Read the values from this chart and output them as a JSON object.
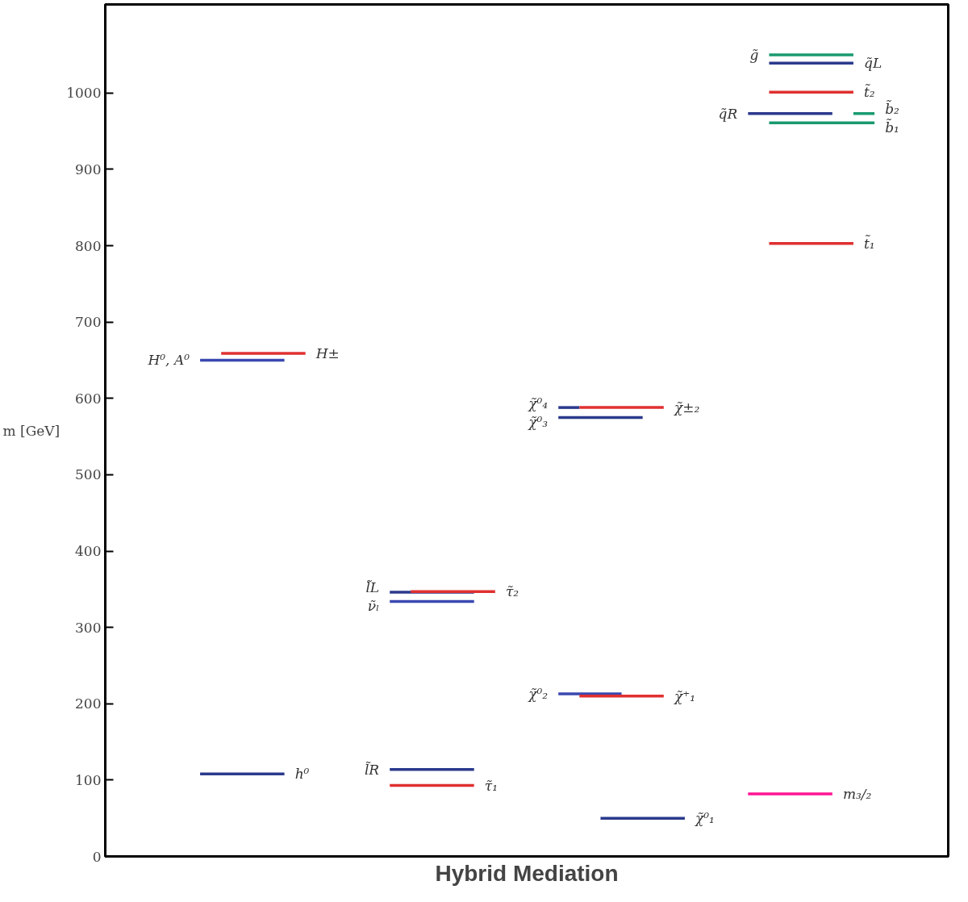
{
  "chart_data": {
    "type": "line",
    "xlabel": "Hybrid Mediation",
    "ylabel": "m [GeV]",
    "categories": [
      null,
      null,
      null,
      null,
      null,
      null,
      null,
      null,
      null,
      null,
      null,
      null,
      null,
      null,
      null,
      null,
      null,
      null,
      null,
      null,
      null,
      null,
      null,
      null,
      null,
      null,
      null,
      null,
      null,
      null,
      null,
      null,
      null,
      null,
      null,
      null,
      null,
      null,
      null,
      null
    ],
    "ylim": [
      0,
      1116
    ],
    "yticks": [
      0,
      100,
      200,
      300,
      400,
      500,
      600,
      700,
      800,
      900,
      1000
    ],
    "tick_labels": "y",
    "grid": false,
    "legend": false,
    "marker": "none",
    "line_style": "solid",
    "series": [
      {
        "name": "h⁰",
        "color": "#2b3a8c",
        "values": [
          null,
          null,
          null,
          null,
          108,
          108,
          108,
          108,
          108,
          null,
          null,
          null,
          null,
          null,
          null,
          null,
          null,
          null,
          null,
          null,
          null,
          null,
          null,
          null,
          null,
          null,
          null,
          null,
          null,
          null,
          null,
          null,
          null,
          null,
          null,
          null,
          null,
          null,
          null,
          null
        ]
      },
      {
        "name": "H⁰, A⁰",
        "color": "#3a48b0",
        "values": [
          null,
          null,
          null,
          null,
          650,
          650,
          650,
          650,
          650,
          null,
          null,
          null,
          null,
          null,
          null,
          null,
          null,
          null,
          null,
          null,
          null,
          null,
          null,
          null,
          null,
          null,
          null,
          null,
          null,
          null,
          null,
          null,
          null,
          null,
          null,
          null,
          null,
          null,
          null,
          null
        ]
      },
      {
        "name": "H±",
        "color": "#e03030",
        "values": [
          null,
          null,
          null,
          null,
          null,
          659,
          659,
          659,
          659,
          659,
          null,
          null,
          null,
          null,
          null,
          null,
          null,
          null,
          null,
          null,
          null,
          null,
          null,
          null,
          null,
          null,
          null,
          null,
          null,
          null,
          null,
          null,
          null,
          null,
          null,
          null,
          null,
          null,
          null,
          null
        ]
      },
      {
        "name": "l̃L",
        "color": "#2b3a8c",
        "values": [
          null,
          null,
          null,
          null,
          null,
          null,
          null,
          null,
          null,
          null,
          null,
          null,
          null,
          346,
          346,
          346,
          346,
          346,
          null,
          null,
          null,
          null,
          null,
          null,
          null,
          null,
          null,
          null,
          null,
          null,
          null,
          null,
          null,
          null,
          null,
          null,
          null,
          null,
          null,
          null
        ]
      },
      {
        "name": "τ̃₂",
        "color": "#e03030",
        "values": [
          null,
          null,
          null,
          null,
          null,
          null,
          null,
          null,
          null,
          null,
          null,
          null,
          null,
          null,
          347,
          347,
          347,
          347,
          347,
          null,
          null,
          null,
          null,
          null,
          null,
          null,
          null,
          null,
          null,
          null,
          null,
          null,
          null,
          null,
          null,
          null,
          null,
          null,
          null,
          null
        ]
      },
      {
        "name": "ν̃ₗ",
        "color": "#3a48b0",
        "values": [
          null,
          null,
          null,
          null,
          null,
          null,
          null,
          null,
          null,
          null,
          null,
          null,
          null,
          334,
          334,
          334,
          334,
          334,
          null,
          null,
          null,
          null,
          null,
          null,
          null,
          null,
          null,
          null,
          null,
          null,
          null,
          null,
          null,
          null,
          null,
          null,
          null,
          null,
          null,
          null
        ]
      },
      {
        "name": "l̃R",
        "color": "#2b3a8c",
        "values": [
          null,
          null,
          null,
          null,
          null,
          null,
          null,
          null,
          null,
          null,
          null,
          null,
          null,
          114,
          114,
          114,
          114,
          114,
          null,
          null,
          null,
          null,
          null,
          null,
          null,
          null,
          null,
          null,
          null,
          null,
          null,
          null,
          null,
          null,
          null,
          null,
          null,
          null,
          null,
          null
        ]
      },
      {
        "name": "τ̃₁",
        "color": "#e03030",
        "values": [
          null,
          null,
          null,
          null,
          null,
          null,
          null,
          null,
          null,
          null,
          null,
          null,
          null,
          93,
          93,
          93,
          93,
          93,
          null,
          null,
          null,
          null,
          null,
          null,
          null,
          null,
          null,
          null,
          null,
          null,
          null,
          null,
          null,
          null,
          null,
          null,
          null,
          null,
          null,
          null
        ]
      },
      {
        "name": "χ̃⁰₄",
        "color": "#2b3a8c",
        "values": [
          null,
          null,
          null,
          null,
          null,
          null,
          null,
          null,
          null,
          null,
          null,
          null,
          null,
          null,
          null,
          null,
          null,
          null,
          null,
          null,
          null,
          588,
          588,
          null,
          null,
          null,
          null,
          null,
          null,
          null,
          null,
          null,
          null,
          null,
          null,
          null,
          null,
          null,
          null,
          null
        ]
      },
      {
        "name": "χ̃±₂",
        "color": "#e03030",
        "values": [
          null,
          null,
          null,
          null,
          null,
          null,
          null,
          null,
          null,
          null,
          null,
          null,
          null,
          null,
          null,
          null,
          null,
          null,
          null,
          null,
          null,
          null,
          588,
          588,
          588,
          588,
          588,
          null,
          null,
          null,
          null,
          null,
          null,
          null,
          null,
          null,
          null,
          null,
          null,
          null
        ]
      },
      {
        "name": "χ̃⁰₃",
        "color": "#2b3a8c",
        "values": [
          null,
          null,
          null,
          null,
          null,
          null,
          null,
          null,
          null,
          null,
          null,
          null,
          null,
          null,
          null,
          null,
          null,
          null,
          null,
          null,
          null,
          575,
          575,
          575,
          575,
          575,
          null,
          null,
          null,
          null,
          null,
          null,
          null,
          null,
          null,
          null,
          null,
          null,
          null,
          null
        ]
      },
      {
        "name": "χ̃⁰₂",
        "color": "#3a48b0",
        "values": [
          null,
          null,
          null,
          null,
          null,
          null,
          null,
          null,
          null,
          null,
          null,
          null,
          null,
          null,
          null,
          null,
          null,
          null,
          null,
          null,
          null,
          213,
          213,
          213,
          213,
          null,
          null,
          null,
          null,
          null,
          null,
          null,
          null,
          null,
          null,
          null,
          null,
          null,
          null,
          null
        ]
      },
      {
        "name": "χ̃⁺₁",
        "color": "#e03030",
        "values": [
          null,
          null,
          null,
          null,
          null,
          null,
          null,
          null,
          null,
          null,
          null,
          null,
          null,
          null,
          null,
          null,
          null,
          null,
          null,
          null,
          null,
          null,
          210,
          210,
          210,
          210,
          210,
          null,
          null,
          null,
          null,
          null,
          null,
          null,
          null,
          null,
          null,
          null,
          null,
          null
        ]
      },
      {
        "name": "χ̃⁰₁",
        "color": "#2b3a8c",
        "values": [
          null,
          null,
          null,
          null,
          null,
          null,
          null,
          null,
          null,
          null,
          null,
          null,
          null,
          null,
          null,
          null,
          null,
          null,
          null,
          null,
          null,
          null,
          null,
          50,
          50,
          50,
          50,
          50,
          null,
          null,
          null,
          null,
          null,
          null,
          null,
          null,
          null,
          null,
          null,
          null
        ]
      },
      {
        "name": "g̃",
        "color": "#1a9a70",
        "values": [
          null,
          null,
          null,
          null,
          null,
          null,
          null,
          null,
          null,
          null,
          null,
          null,
          null,
          null,
          null,
          null,
          null,
          null,
          null,
          null,
          null,
          null,
          null,
          null,
          null,
          null,
          null,
          null,
          null,
          null,
          null,
          1050,
          1050,
          1050,
          1050,
          1050,
          null,
          null,
          null,
          null
        ]
      },
      {
        "name": "q̃L",
        "color": "#2b3a8c",
        "values": [
          null,
          null,
          null,
          null,
          null,
          null,
          null,
          null,
          null,
          null,
          null,
          null,
          null,
          null,
          null,
          null,
          null,
          null,
          null,
          null,
          null,
          null,
          null,
          null,
          null,
          null,
          null,
          null,
          null,
          null,
          null,
          1039,
          1039,
          1039,
          1039,
          1039,
          null,
          null,
          null,
          null
        ]
      },
      {
        "name": "t̃₂",
        "color": "#e03030",
        "values": [
          null,
          null,
          null,
          null,
          null,
          null,
          null,
          null,
          null,
          null,
          null,
          null,
          null,
          null,
          null,
          null,
          null,
          null,
          null,
          null,
          null,
          null,
          null,
          null,
          null,
          null,
          null,
          null,
          null,
          null,
          null,
          1001,
          1001,
          1001,
          1001,
          1001,
          null,
          null,
          null,
          null
        ]
      },
      {
        "name": "q̃R",
        "color": "#2b3a8c",
        "values": [
          null,
          null,
          null,
          null,
          null,
          null,
          null,
          null,
          null,
          null,
          null,
          null,
          null,
          null,
          null,
          null,
          null,
          null,
          null,
          null,
          null,
          null,
          null,
          null,
          null,
          null,
          null,
          null,
          null,
          null,
          973,
          973,
          973,
          973,
          973,
          null,
          null,
          null,
          null,
          null
        ]
      },
      {
        "name": "b̃₂",
        "color": "#1a9a70",
        "values": [
          null,
          null,
          null,
          null,
          null,
          null,
          null,
          null,
          null,
          null,
          null,
          null,
          null,
          null,
          null,
          null,
          null,
          null,
          null,
          null,
          null,
          null,
          null,
          null,
          null,
          null,
          null,
          null,
          null,
          null,
          null,
          null,
          null,
          null,
          null,
          973,
          973,
          null,
          null,
          null
        ]
      },
      {
        "name": "b̃₁",
        "color": "#1a9a70",
        "values": [
          null,
          null,
          null,
          null,
          null,
          null,
          null,
          null,
          null,
          null,
          null,
          null,
          null,
          null,
          null,
          null,
          null,
          null,
          null,
          null,
          null,
          null,
          null,
          null,
          null,
          null,
          null,
          null,
          null,
          null,
          null,
          961,
          961,
          961,
          961,
          961,
          961,
          null,
          null,
          null
        ]
      },
      {
        "name": "t̃₁",
        "color": "#e03030",
        "values": [
          null,
          null,
          null,
          null,
          null,
          null,
          null,
          null,
          null,
          null,
          null,
          null,
          null,
          null,
          null,
          null,
          null,
          null,
          null,
          null,
          null,
          null,
          null,
          null,
          null,
          null,
          null,
          null,
          null,
          null,
          null,
          803,
          803,
          803,
          803,
          803,
          null,
          null,
          null,
          null
        ]
      },
      {
        "name": "m₃/₂",
        "color": "#ff1493",
        "values": [
          null,
          null,
          null,
          null,
          null,
          null,
          null,
          null,
          null,
          null,
          null,
          null,
          null,
          null,
          null,
          null,
          null,
          null,
          null,
          null,
          null,
          null,
          null,
          null,
          null,
          null,
          null,
          null,
          null,
          null,
          82,
          82,
          82,
          82,
          82,
          null,
          null,
          null,
          null,
          null
        ]
      }
    ]
  }
}
